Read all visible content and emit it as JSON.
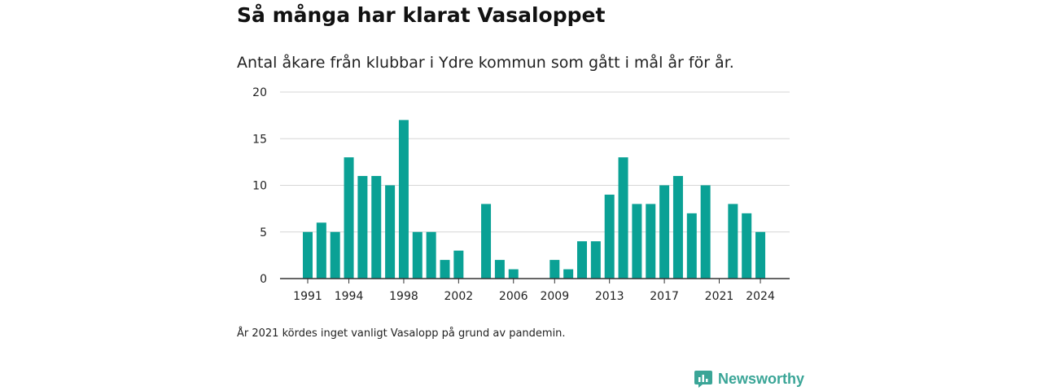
{
  "title": "Så många har klarat Vasaloppet",
  "subtitle": "Antal åkare från klubbar i Ydre kommun som gått i mål år för år.",
  "footnote": "År 2021 kördes inget vanligt Vasalopp på grund av pandemin.",
  "brand": {
    "name": "Newsworthy",
    "icon": "newsworthy-logo-icon"
  },
  "colors": {
    "bar": "#0aa195",
    "grid": "#d6d6d6",
    "axis": "#333333",
    "brand": "#3aa597"
  },
  "chart_data": {
    "type": "bar",
    "categories": [
      1991,
      1992,
      1993,
      1994,
      1995,
      1996,
      1997,
      1998,
      1999,
      2000,
      2001,
      2002,
      2003,
      2004,
      2005,
      2006,
      2007,
      2008,
      2009,
      2010,
      2011,
      2012,
      2013,
      2014,
      2015,
      2016,
      2017,
      2018,
      2019,
      2020,
      2021,
      2022,
      2023,
      2024
    ],
    "values": [
      5,
      6,
      5,
      13,
      11,
      11,
      10,
      17,
      5,
      5,
      2,
      3,
      0,
      8,
      2,
      1,
      0,
      0,
      2,
      1,
      4,
      4,
      9,
      13,
      8,
      8,
      10,
      11,
      7,
      10,
      0,
      8,
      7,
      5
    ],
    "x_tick_labels": [
      "1991",
      "1994",
      "1998",
      "2002",
      "2006",
      "2009",
      "2013",
      "2017",
      "2021",
      "2024"
    ],
    "y_ticks": [
      0,
      5,
      10,
      15,
      20
    ],
    "ylim": [
      0,
      20
    ],
    "grid": true,
    "xlabel": "",
    "ylabel": ""
  }
}
